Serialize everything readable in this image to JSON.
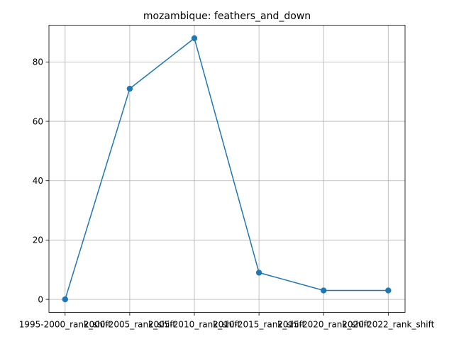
{
  "chart_data": {
    "type": "line",
    "title": "mozambique: feathers_and_down",
    "xlabel": "",
    "ylabel": "",
    "categories": [
      "1995-2000_rank_shift",
      "2000-2005_rank_shift",
      "2005-2010_rank_shift",
      "2010-2015_rank_shift",
      "2015-2020_rank_shift",
      "2020-2022_rank_shift"
    ],
    "series": [
      {
        "values": [
          0,
          71,
          88,
          9,
          3,
          3
        ],
        "color": "#1f77b4",
        "marker": "circle"
      }
    ],
    "ylim": [
      -4.4,
      92.4
    ],
    "yticks": [
      0,
      20,
      40,
      60,
      80
    ],
    "grid": true,
    "legend": "none"
  }
}
